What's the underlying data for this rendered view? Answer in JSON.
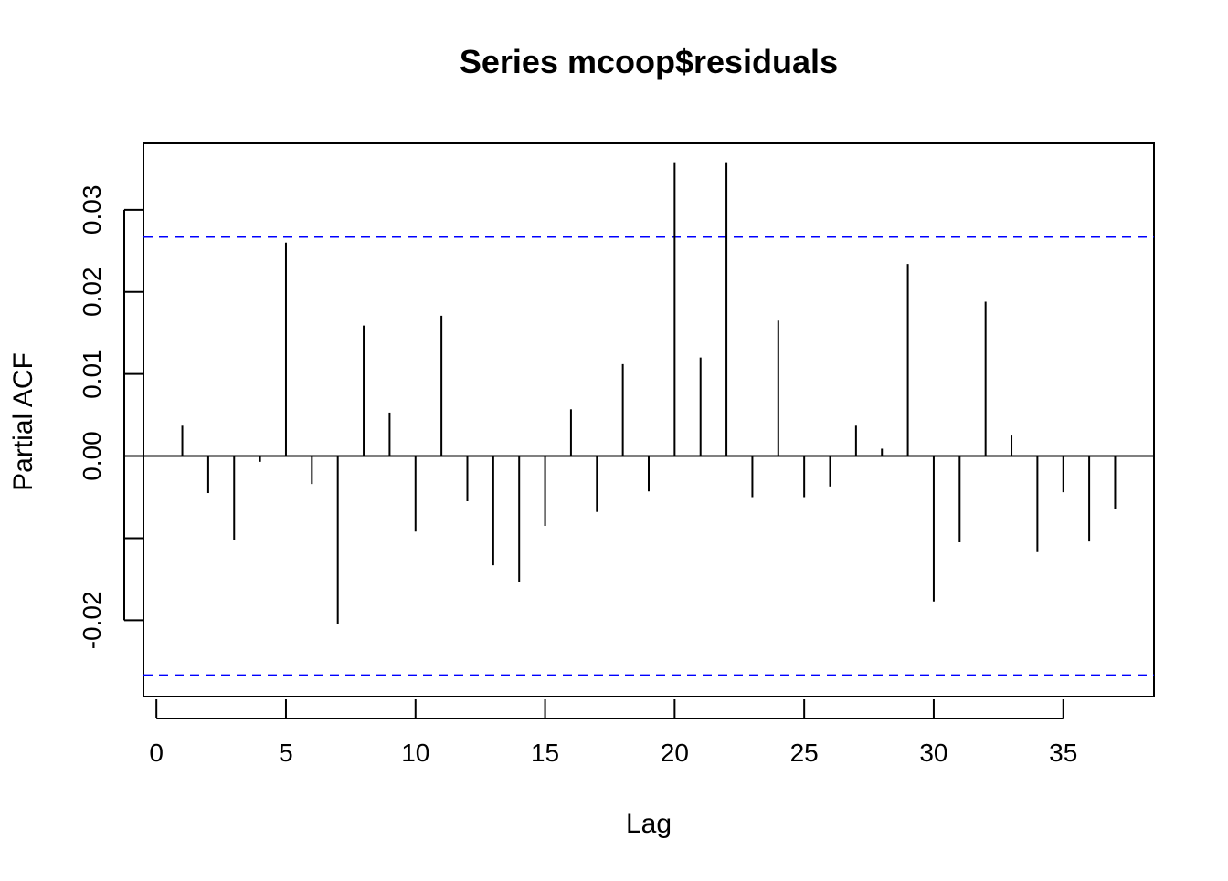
{
  "chart_data": {
    "type": "bar",
    "title": "Series  mcoop$residuals",
    "xlabel": "Lag",
    "ylabel": "Partial ACF",
    "x": [
      1,
      2,
      3,
      4,
      5,
      6,
      7,
      8,
      9,
      10,
      11,
      12,
      13,
      14,
      15,
      16,
      17,
      18,
      19,
      20,
      21,
      22,
      23,
      24,
      25,
      26,
      27,
      28,
      29,
      30,
      31,
      32,
      33,
      34,
      35,
      36,
      37
    ],
    "values": [
      0.0037,
      -0.0045,
      -0.0102,
      -0.0007,
      0.026,
      -0.0034,
      -0.0205,
      0.0159,
      0.0053,
      -0.0092,
      0.0171,
      -0.0055,
      -0.0133,
      -0.0154,
      -0.0085,
      0.0057,
      -0.0068,
      0.0112,
      -0.0043,
      0.0358,
      0.012,
      0.0358,
      -0.005,
      0.0165,
      -0.005,
      -0.0037,
      0.0037,
      0.0009,
      0.0234,
      -0.0177,
      -0.0105,
      0.0188,
      0.0025,
      -0.0117,
      -0.0044,
      -0.0104,
      -0.0065
    ],
    "xlim": [
      -0.5,
      38.5
    ],
    "ylim": [
      -0.0293,
      0.0381
    ],
    "x_ticks": [
      0,
      5,
      10,
      15,
      20,
      25,
      30,
      35
    ],
    "x_tick_labels": [
      "0",
      "5",
      "10",
      "15",
      "20",
      "25",
      "30",
      "35"
    ],
    "y_ticks": [
      -0.02,
      -0.01,
      0.0,
      0.01,
      0.02,
      0.03
    ],
    "y_tick_labels": [
      "-0.02",
      "",
      "0.00",
      "0.01",
      "0.02",
      "0.03"
    ],
    "confidence_bounds": [
      0.0267,
      -0.0267
    ],
    "confidence_color": "#0000ff",
    "bar_color": "#000000",
    "grid": false
  }
}
